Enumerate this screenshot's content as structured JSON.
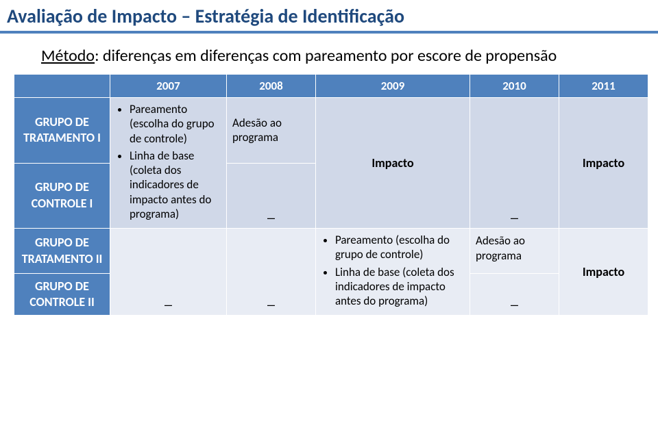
{
  "colors": {
    "title_text": "#1f497d",
    "title_underline": "#4f81bd",
    "header_bg": "#4f81bd",
    "header_text": "#ffffff",
    "rowlabel_bg": "#4f81bd",
    "light_row": "#d0d8e8",
    "dark_row": "#e8ecf4",
    "body_text": "#000000",
    "cell_border": "#ffffff"
  },
  "title": "Avaliação de Impacto – Estratégia de Identificação",
  "subtitle": {
    "method_label": "Método",
    "rest": ": diferenças em diferenças com pareamento por escore de propensão"
  },
  "table": {
    "header": [
      "",
      "2007",
      "2008",
      "2009",
      "2010",
      "2011"
    ],
    "row_labels": {
      "tr1": "GRUPO DE TRATAMENTO I",
      "ctrl1": "GRUPO DE CONTROLE I",
      "tr2": "GRUPO DE TRATAMENTO II",
      "ctrl2": "GRUPO DE CONTROLE II"
    },
    "cells": {
      "c2007_bullets": [
        "Pareamento (escolha do grupo de controle)",
        "Linha de base (coleta dos indicadores de impacto antes do programa)"
      ],
      "adesao": "Adesão ao programa",
      "impacto": "Impacto",
      "c2009_bullets": [
        "Pareamento (escolha do grupo de controle)",
        "Linha de base (coleta dos indicadores de impacto antes do programa)"
      ],
      "dash": "_"
    }
  }
}
